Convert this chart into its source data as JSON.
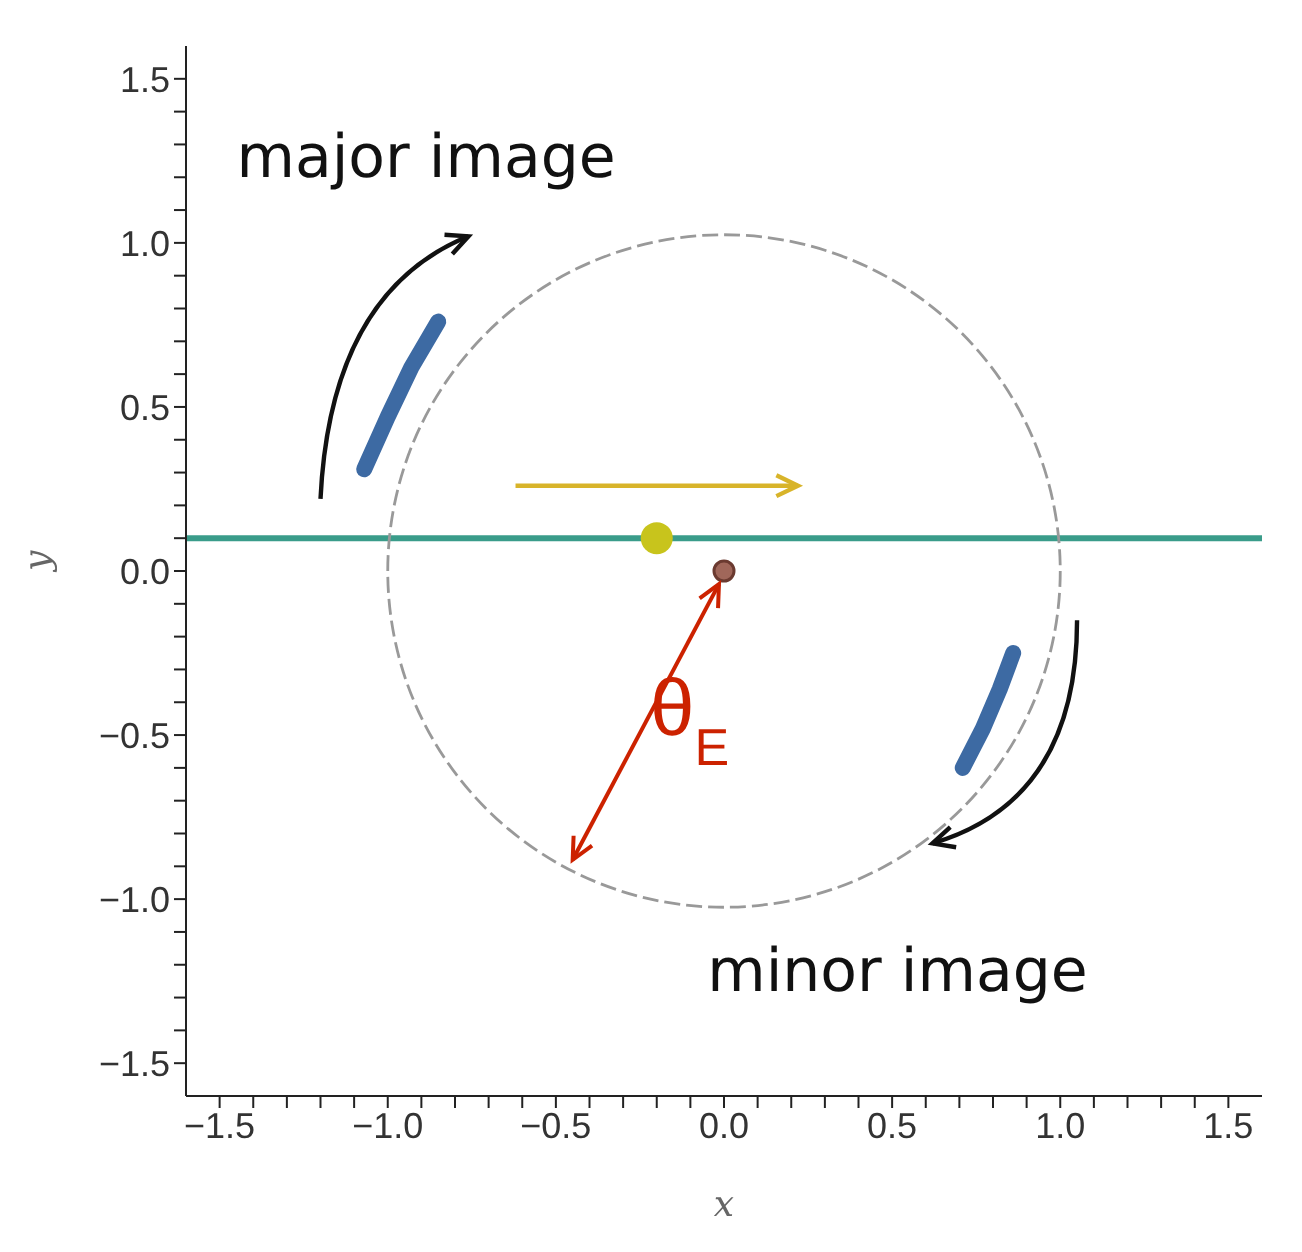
{
  "chart_data": {
    "type": "line",
    "xlabel": "x",
    "ylabel": "y",
    "xlim": [
      -1.6,
      1.6
    ],
    "ylim": [
      -1.6,
      1.6
    ],
    "xticks": [
      {
        "value": -1.5,
        "label": "−1.5"
      },
      {
        "value": -1.4,
        "label": null
      },
      {
        "value": -1.3,
        "label": null
      },
      {
        "value": -1.2,
        "label": null
      },
      {
        "value": -1.1,
        "label": null
      },
      {
        "value": -1,
        "label": "−1.0"
      },
      {
        "value": -0.9,
        "label": null
      },
      {
        "value": -0.8,
        "label": null
      },
      {
        "value": -0.7,
        "label": null
      },
      {
        "value": -0.6,
        "label": null
      },
      {
        "value": -0.5,
        "label": "−0.5"
      },
      {
        "value": -0.4,
        "label": null
      },
      {
        "value": -0.3,
        "label": null
      },
      {
        "value": -0.2,
        "label": null
      },
      {
        "value": -0.1,
        "label": null
      },
      {
        "value": 0,
        "label": "0.0"
      },
      {
        "value": 0.1,
        "label": null
      },
      {
        "value": 0.2,
        "label": null
      },
      {
        "value": 0.3,
        "label": null
      },
      {
        "value": 0.4,
        "label": null
      },
      {
        "value": 0.5,
        "label": "0.5"
      },
      {
        "value": 0.6,
        "label": null
      },
      {
        "value": 0.7,
        "label": null
      },
      {
        "value": 0.8,
        "label": null
      },
      {
        "value": 0.9,
        "label": null
      },
      {
        "value": 1,
        "label": "1.0"
      },
      {
        "value": 1.1,
        "label": null
      },
      {
        "value": 1.2,
        "label": null
      },
      {
        "value": 1.3,
        "label": null
      },
      {
        "value": 1.4,
        "label": null
      },
      {
        "value": 1.5,
        "label": "1.5"
      }
    ],
    "yticks": [
      {
        "value": -1.5,
        "label": "−1.5"
      },
      {
        "value": -1.4,
        "label": null
      },
      {
        "value": -1.3,
        "label": null
      },
      {
        "value": -1.2,
        "label": null
      },
      {
        "value": -1.1,
        "label": null
      },
      {
        "value": -1,
        "label": "−1.0"
      },
      {
        "value": -0.9,
        "label": null
      },
      {
        "value": -0.8,
        "label": null
      },
      {
        "value": -0.7,
        "label": null
      },
      {
        "value": -0.6,
        "label": null
      },
      {
        "value": -0.5,
        "label": "−0.5"
      },
      {
        "value": -0.4,
        "label": null
      },
      {
        "value": -0.3,
        "label": null
      },
      {
        "value": -0.2,
        "label": null
      },
      {
        "value": -0.1,
        "label": null
      },
      {
        "value": 0,
        "label": "0.0"
      },
      {
        "value": 0.1,
        "label": null
      },
      {
        "value": 0.2,
        "label": null
      },
      {
        "value": 0.3,
        "label": null
      },
      {
        "value": 0.4,
        "label": null
      },
      {
        "value": 0.5,
        "label": "0.5"
      },
      {
        "value": 0.6,
        "label": null
      },
      {
        "value": 0.7,
        "label": null
      },
      {
        "value": 0.8,
        "label": null
      },
      {
        "value": 0.9,
        "label": null
      },
      {
        "value": 1,
        "label": "1.0"
      },
      {
        "value": 1.1,
        "label": null
      },
      {
        "value": 1.2,
        "label": null
      },
      {
        "value": 1.3,
        "label": null
      },
      {
        "value": 1.4,
        "label": null
      },
      {
        "value": 1.5,
        "label": "1.5"
      }
    ],
    "series": [
      {
        "line_style": "solid",
        "marker": "none",
        "color": "#3a9c8a",
        "x": [
          -1.6,
          1.6
        ],
        "values": [
          0.1,
          0.1
        ]
      },
      {
        "line_style": "solid",
        "marker": "none",
        "color": "#3d6aa3",
        "x": [
          -1.07,
          -1.0,
          -0.93,
          -0.85
        ],
        "values": [
          0.31,
          0.47,
          0.62,
          0.76
        ]
      },
      {
        "line_style": "solid",
        "marker": "none",
        "color": "#3d6aa3",
        "x": [
          0.71,
          0.77,
          0.82,
          0.86
        ],
        "values": [
          -0.6,
          -0.48,
          -0.36,
          -0.25
        ]
      },
      {
        "type": "scatter",
        "marker": "circle",
        "color": "#c8c41c",
        "x": [
          -0.2
        ],
        "values": [
          0.1
        ]
      },
      {
        "type": "scatter",
        "marker": "circle",
        "color": "#a0675a",
        "x": [
          0
        ],
        "values": [
          0
        ]
      }
    ],
    "annotations": [
      "major image",
      "minor image",
      "θ$_{E}$"
    ]
  }
}
